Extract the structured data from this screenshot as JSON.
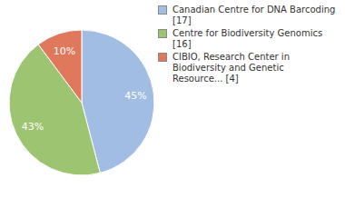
{
  "chart_data": {
    "type": "pie",
    "categories": [
      "Canadian Centre for DNA Barcoding [17]",
      "Centre for Biodiversity Genomics [16]",
      "CIBIO, Research Center in Biodiversity and Genetic Resource... [4]"
    ],
    "values": [
      45,
      43,
      10
    ],
    "value_labels": [
      "45%",
      "43%",
      "10%"
    ],
    "colors": [
      "#a2bde3",
      "#9dc571",
      "#e0795c"
    ],
    "data_labels": true,
    "legend": "right"
  }
}
